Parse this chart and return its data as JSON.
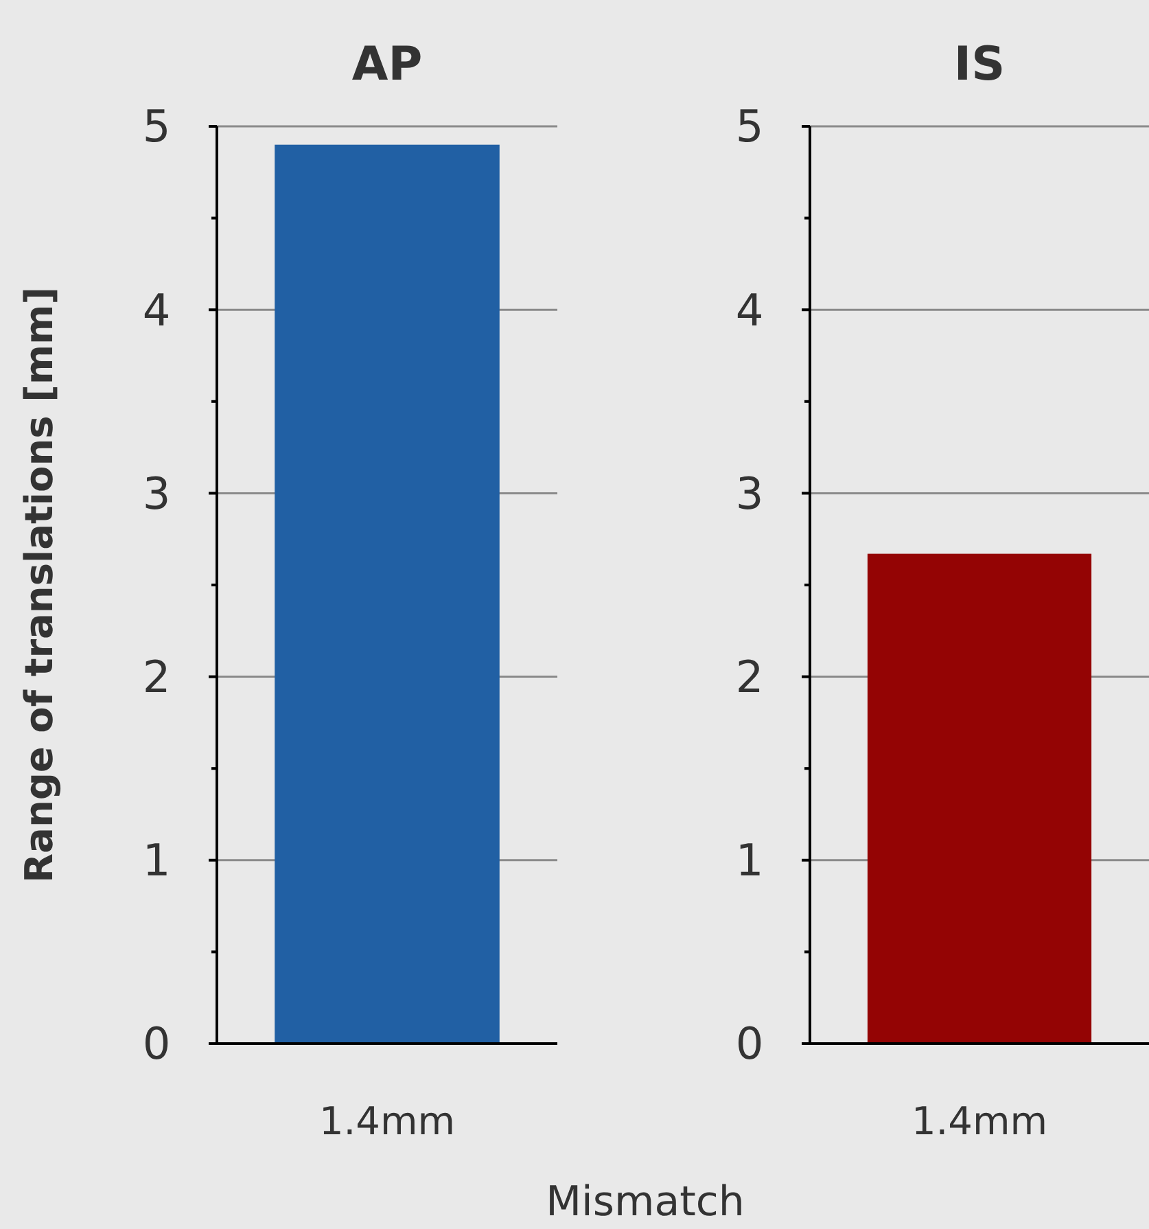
{
  "chart_data": [
    {
      "type": "bar",
      "title": "AP",
      "ylabel": "Range of translations [mm]",
      "xlabel": "Mismatch",
      "categories": [
        "1.4mm"
      ],
      "values": [
        4.9
      ],
      "color": "#2160a4",
      "ylim": [
        0,
        5
      ],
      "yticks": [
        0,
        {
          "value": 0.5,
          "label": null
        },
        1,
        {
          "value": 1.5,
          "label": null
        },
        2,
        {
          "value": 2.5,
          "label": null
        },
        3,
        {
          "value": 3.5,
          "label": null
        },
        4,
        {
          "value": 4.5,
          "label": null
        },
        5
      ],
      "grid": "y"
    },
    {
      "type": "bar",
      "title": "IS",
      "categories": [
        "1.4mm"
      ],
      "values": [
        2.67
      ],
      "color": "#940404",
      "ylim": [
        0,
        5
      ],
      "yticks": [
        0,
        {
          "value": 0.5,
          "label": null
        },
        1,
        {
          "value": 1.5,
          "label": null
        },
        2,
        {
          "value": 2.5,
          "label": null
        },
        3,
        {
          "value": 3.5,
          "label": null
        },
        4,
        {
          "value": 4.5,
          "label": null
        },
        5
      ],
      "grid": "y"
    }
  ]
}
